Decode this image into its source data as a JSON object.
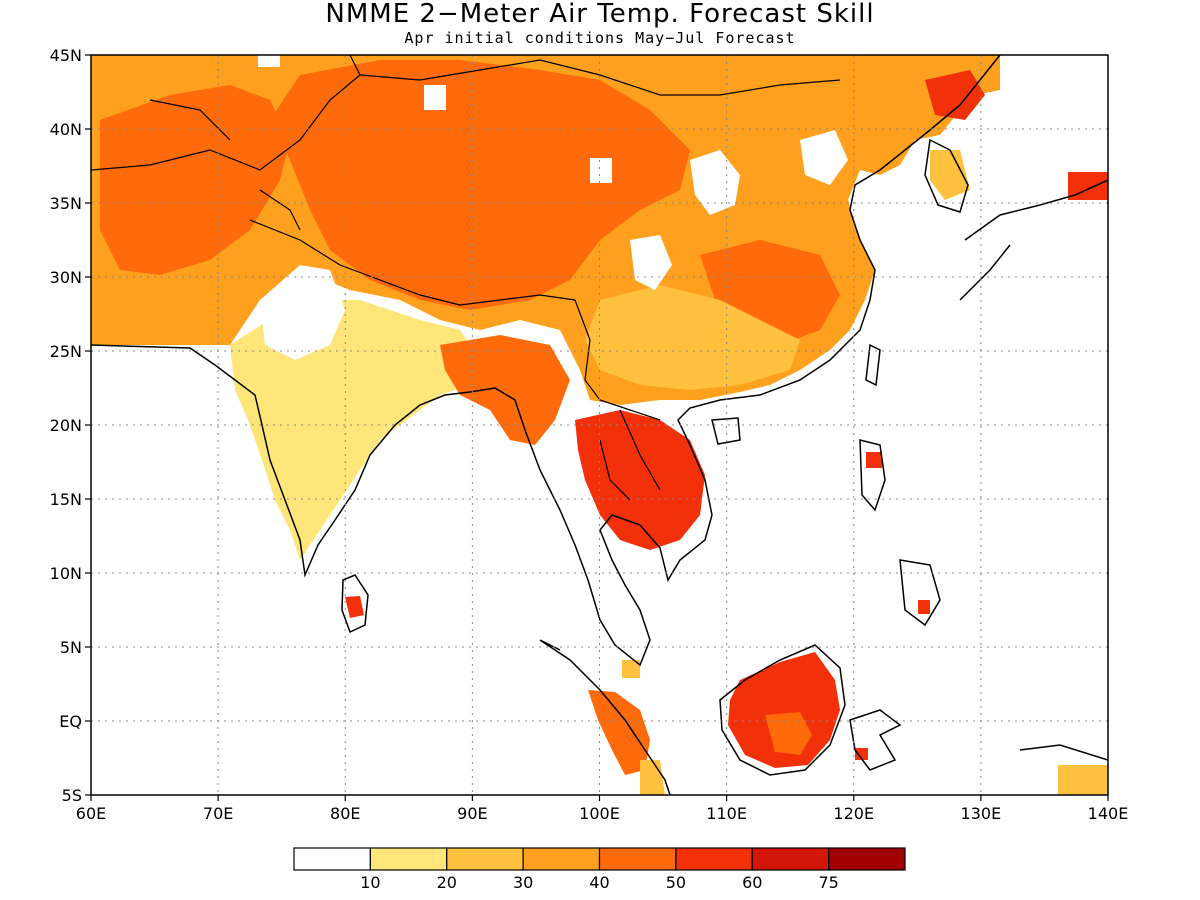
{
  "title": "NMME 2−Meter Air Temp. Forecast Skill",
  "subtitle": "Apr initial conditions   May−Jul Forecast",
  "map": {
    "lon_range": [
      60,
      140
    ],
    "lat_range": [
      -5,
      45
    ],
    "x_ticks": [
      "60E",
      "70E",
      "80E",
      "90E",
      "100E",
      "110E",
      "120E",
      "130E",
      "140E"
    ],
    "y_ticks": [
      "45N",
      "40N",
      "35N",
      "30N",
      "25N",
      "20N",
      "15N",
      "10N",
      "5N",
      "EQ",
      "5S"
    ],
    "grid": "dotted"
  },
  "colorbar": {
    "colors": [
      "#ffffff",
      "#ffe57a",
      "#ffc13e",
      "#ffa01f",
      "#ff6a0a",
      "#f2300a",
      "#d2160a",
      "#a00000"
    ],
    "labels": [
      "10",
      "20",
      "30",
      "40",
      "50",
      "60",
      "75"
    ]
  },
  "regions": [
    {
      "name": "central-asia",
      "color": "#ffa01f"
    },
    {
      "name": "tibet-plateau",
      "color": "#ff6a0a"
    },
    {
      "name": "india",
      "color": "#ffe57a"
    },
    {
      "name": "south-china",
      "color": "#ffc13e"
    },
    {
      "name": "indochina",
      "color": "#f2300a"
    },
    {
      "name": "borneo",
      "color": "#f2300a"
    },
    {
      "name": "sumatra",
      "color": "#ff6a0a"
    }
  ]
}
